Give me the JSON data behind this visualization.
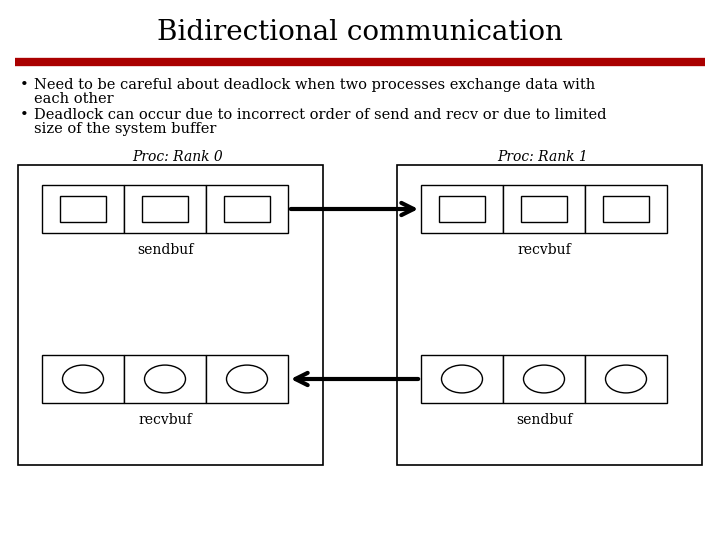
{
  "title": "Bidirectional communication",
  "title_fontsize": 20,
  "bg_color": "#ffffff",
  "divider_color": "#aa0000",
  "bullet1a": "Need to be careful about deadlock when two processes exchange data with",
  "bullet1b": "each other",
  "bullet2a": "Deadlock can occur due to incorrect order of send and recv or due to limited",
  "bullet2b": "size of the system buffer",
  "proc0_label": "Proc: Rank 0",
  "proc1_label": "Proc: Rank 1",
  "sendbuf_label": "sendbuf",
  "recvbuf_label": "recvbuf",
  "text_color": "#000000",
  "font_family": "serif",
  "bullet_fontsize": 10.5,
  "label_fontsize": 10,
  "proc_label_fontsize": 10
}
